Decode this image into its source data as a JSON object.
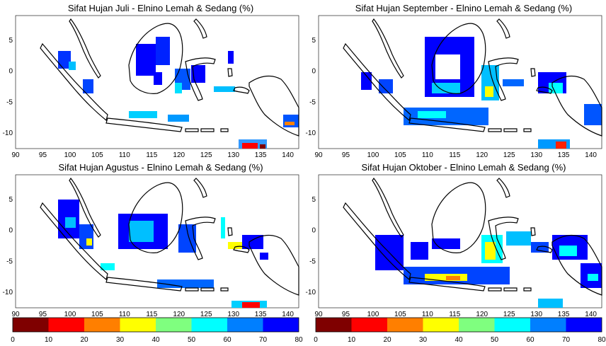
{
  "panels": [
    {
      "id": "jul",
      "title": "Sifat Hujan Juli - Elnino Lemah & Sedang (%)"
    },
    {
      "id": "sep",
      "title": "Sifat Hujan September - Elnino Lemah & Sedang (%)"
    },
    {
      "id": "aug",
      "title": "Sifat Hujan Agustus - Elnino Lemah & Sedang (%)"
    },
    {
      "id": "oct",
      "title": "Sifat Hujan Oktober - Elnino Lemah & Sedang (%)"
    }
  ],
  "axes": {
    "x_ticks": [
      "90",
      "95",
      "100",
      "105",
      "110",
      "115",
      "120",
      "125",
      "130",
      "135",
      "140"
    ],
    "y_ticks": [
      "5",
      "0",
      "-5",
      "-10"
    ],
    "x_range": [
      90,
      142
    ],
    "y_range": [
      -12.5,
      9
    ]
  },
  "colorbar": {
    "labels": [
      "0",
      "10",
      "20",
      "30",
      "40",
      "50",
      "60",
      "70",
      "80"
    ],
    "colors": [
      "#7f0000",
      "#ff0000",
      "#ff7f00",
      "#ffff00",
      "#7fff7f",
      "#00ffff",
      "#007fff",
      "#0000ff"
    ]
  }
}
